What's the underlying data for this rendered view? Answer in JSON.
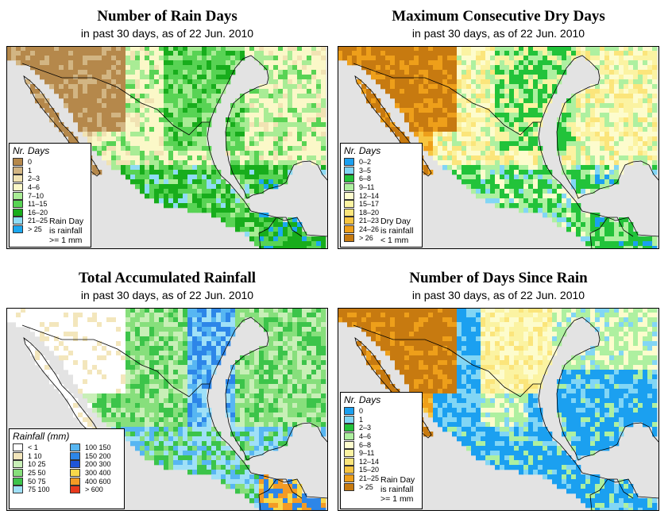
{
  "panels": [
    {
      "id": "rain-days",
      "title": "Number of Rain Days",
      "subtitle": "in past 30 days, as of  22 Jun. 2010",
      "legend": {
        "title": "Nr. Days",
        "note": "Rain Day\nis rainfall\n>= 1 mm",
        "items": [
          {
            "label": "0",
            "color": "#b5884b"
          },
          {
            "label": "1",
            "color": "#d2b583"
          },
          {
            "label": "2–3",
            "color": "#f1e3b3"
          },
          {
            "label": "4–6",
            "color": "#fbf8c8"
          },
          {
            "label": "7–10",
            "color": "#a9ec95"
          },
          {
            "label": "11–15",
            "color": "#58d354"
          },
          {
            "label": "16–20",
            "color": "#18ad1c"
          },
          {
            "label": "21–25",
            "color": "#8fdcf5"
          },
          {
            "label": "> 25",
            "color": "#1ba8f0"
          }
        ]
      }
    },
    {
      "id": "max-dry-days",
      "title": "Maximum Consecutive Dry Days",
      "subtitle": "in past 30 days, as of  22 Jun. 2010",
      "legend": {
        "title": "Nr. Days",
        "note": "Dry Day\nis rainfall\n< 1 mm",
        "items": [
          {
            "label": "0–2",
            "color": "#1ba0f0"
          },
          {
            "label": "3–5",
            "color": "#82d6f5"
          },
          {
            "label": "6–8",
            "color": "#22c33a"
          },
          {
            "label": "9–11",
            "color": "#aef0a0"
          },
          {
            "label": "12–14",
            "color": "#fdfccd"
          },
          {
            "label": "15–17",
            "color": "#fbf3a2"
          },
          {
            "label": "18–20",
            "color": "#fbe57b"
          },
          {
            "label": "21–23",
            "color": "#f7c540"
          },
          {
            "label": "24–26",
            "color": "#ee9f1a"
          },
          {
            "label": "> 26",
            "color": "#c77a10"
          }
        ]
      }
    },
    {
      "id": "total-rainfall",
      "title": "Total Accumulated Rainfall",
      "subtitle": "in past 30 days, as of  22 Jun. 2010",
      "legend": {
        "title": "Rainfall (mm)",
        "items_left": [
          {
            "label": "< 1",
            "color": "#ffffff"
          },
          {
            "label": "1    10",
            "color": "#f3e6bc"
          },
          {
            "label": "10    25",
            "color": "#c8efb7"
          },
          {
            "label": "25    50",
            "color": "#87df7c"
          },
          {
            "label": "50    75",
            "color": "#3cc44a"
          },
          {
            "label": "75  100",
            "color": "#9fe0f7"
          }
        ],
        "items_right": [
          {
            "label": "100  150",
            "color": "#57b6f2"
          },
          {
            "label": "150  200",
            "color": "#2d86e8"
          },
          {
            "label": "200  300",
            "color": "#1e55d8"
          },
          {
            "label": "300  400",
            "color": "#f9d84a"
          },
          {
            "label": "400  600",
            "color": "#f39b25"
          },
          {
            "label": "> 600",
            "color": "#e8391c"
          }
        ]
      }
    },
    {
      "id": "days-since-rain",
      "title": "Number of Days Since Rain",
      "subtitle": "in past 30 days, as of  22 Jun. 2010",
      "legend": {
        "title": "Nr. Days",
        "note": "Rain Day\nis rainfall\n>= 1 mm",
        "items": [
          {
            "label": "0",
            "color": "#1ba0f0"
          },
          {
            "label": "1",
            "color": "#82d6f5"
          },
          {
            "label": "2–3",
            "color": "#22c33a"
          },
          {
            "label": "4–6",
            "color": "#aef0a0"
          },
          {
            "label": "6–8",
            "color": "#fdfccd"
          },
          {
            "label": "9–11",
            "color": "#fbf3a2"
          },
          {
            "label": "12–14",
            "color": "#fbe57b"
          },
          {
            "label": "15–20",
            "color": "#f7c540"
          },
          {
            "label": "21–25",
            "color": "#ee9f1a"
          },
          {
            "label": "> 25",
            "color": "#c77a10"
          }
        ]
      }
    }
  ],
  "colors": {
    "ocean": "#e3e3e3",
    "border": "#000000"
  }
}
